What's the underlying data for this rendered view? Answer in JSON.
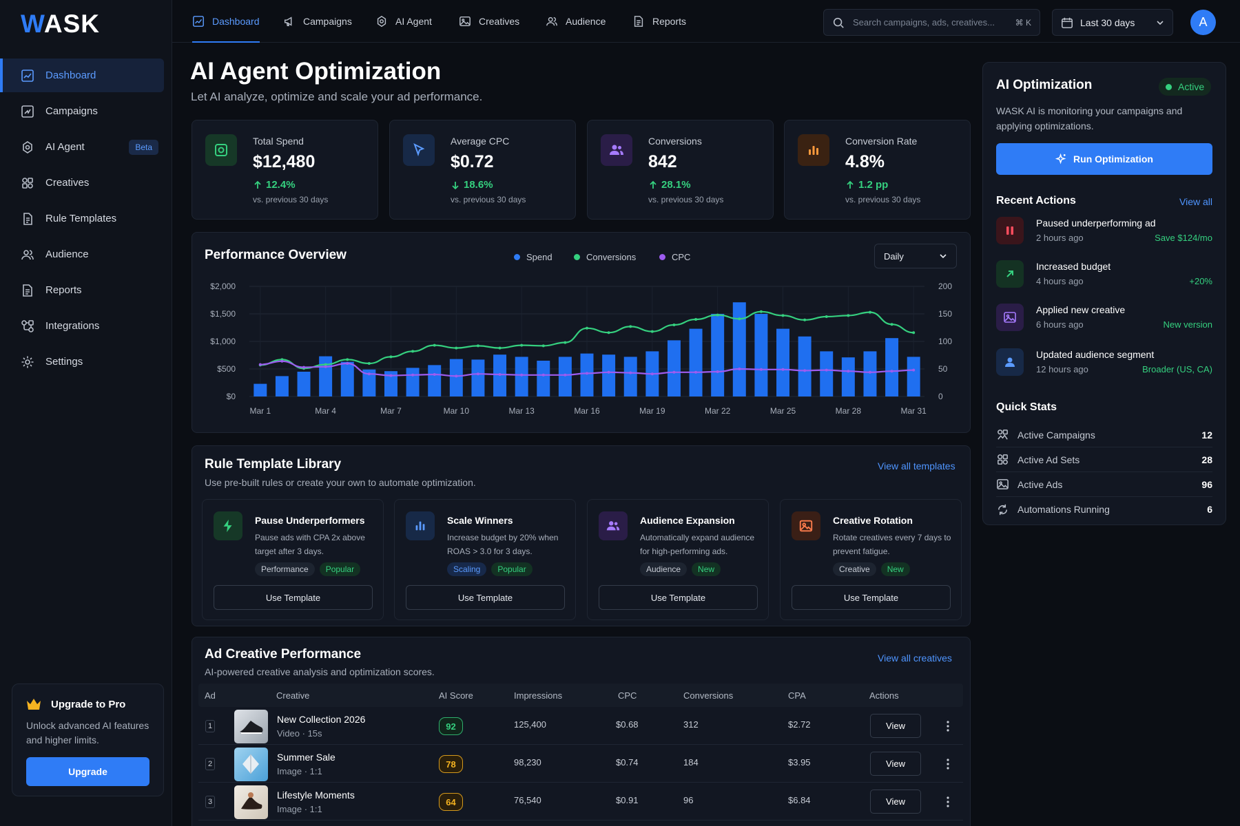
{
  "brand": {
    "logo_w": "W",
    "logo_rest": "ASK"
  },
  "sidebar": {
    "items": [
      {
        "label": "Dashboard",
        "icon": "chart-icon"
      },
      {
        "label": "Campaigns",
        "icon": "campaign-icon"
      },
      {
        "label": "AI Agent",
        "icon": "ai-agent-icon",
        "badge": "Beta"
      },
      {
        "label": "Creatives",
        "icon": "creatives-icon"
      },
      {
        "label": "Rule Templates",
        "icon": "rule-templates-icon"
      },
      {
        "label": "Audience",
        "icon": "audience-icon"
      },
      {
        "label": "Reports",
        "icon": "reports-icon"
      },
      {
        "label": "Integrations",
        "icon": "integrations-icon"
      },
      {
        "label": "Settings",
        "icon": "settings-icon"
      }
    ],
    "upgrade": {
      "title": "Upgrade to Pro",
      "text": "Unlock advanced AI features and higher limits.",
      "button": "Upgrade"
    }
  },
  "topbar": {
    "tabs": [
      "Dashboard",
      "Campaigns",
      "AI Agent",
      "Creatives",
      "Audience",
      "Reports"
    ],
    "search_placeholder": "Search campaigns, ads, creatives...",
    "search_shortcut": "⌘ K",
    "date_range": "Last 30 days",
    "avatar_initial": "A"
  },
  "page": {
    "title": "AI Agent Optimization",
    "subtitle": "Let AI analyze, optimize and scale your ad performance."
  },
  "kpis": [
    {
      "label": "Total Spend",
      "value": "$12,480",
      "change": "12.4%",
      "direction": "up",
      "compare": "vs. previous 30 days",
      "color": "#35d07f"
    },
    {
      "label": "Average CPC",
      "value": "$0.72",
      "change": "18.6%",
      "direction": "down",
      "compare": "vs. previous 30 days",
      "color": "#5b9bff"
    },
    {
      "label": "Conversions",
      "value": "842",
      "change": "28.1%",
      "direction": "up",
      "compare": "vs. previous 30 days",
      "color": "#a67bff"
    },
    {
      "label": "Conversion Rate",
      "value": "4.8%",
      "change": "1.2 pp",
      "direction": "up",
      "compare": "vs. previous 30 days",
      "color": "#ff9a3c"
    }
  ],
  "performance": {
    "title": "Performance Overview",
    "legend": [
      "Spend",
      "Conversions",
      "CPC"
    ],
    "granularity": "Daily"
  },
  "chart_data": {
    "type": "bar",
    "categories": [
      "Mar 1",
      "Mar 2",
      "Mar 3",
      "Mar 4",
      "Mar 5",
      "Mar 6",
      "Mar 7",
      "Mar 8",
      "Mar 9",
      "Mar 10",
      "Mar 11",
      "Mar 12",
      "Mar 13",
      "Mar 14",
      "Mar 15",
      "Mar 16",
      "Mar 17",
      "Mar 18",
      "Mar 19",
      "Mar 20",
      "Mar 21",
      "Mar 22",
      "Mar 23",
      "Mar 24",
      "Mar 25",
      "Mar 26",
      "Mar 27",
      "Mar 28",
      "Mar 29",
      "Mar 30",
      "Mar 31"
    ],
    "x_tick_labels": [
      "Mar 1",
      "Mar 4",
      "Mar 7",
      "Mar 10",
      "Mar 13",
      "Mar 16",
      "Mar 19",
      "Mar 22",
      "Mar 25",
      "Mar 28",
      "Mar 31"
    ],
    "y_left_ticks": [
      "$0",
      "$500",
      "$1,000",
      "$1,500",
      "$2,000"
    ],
    "y_right_ticks": [
      "0",
      "50",
      "100",
      "150",
      "200"
    ],
    "y_left_lim": [
      0,
      2000
    ],
    "y_right_lim": [
      0,
      200
    ],
    "grid": true,
    "series": [
      {
        "name": "Spend",
        "type": "bar",
        "axis": "left",
        "color": "#1f6ff0",
        "values": [
          230,
          370,
          450,
          730,
          630,
          490,
          460,
          520,
          570,
          680,
          670,
          760,
          720,
          650,
          720,
          780,
          760,
          720,
          820,
          1020,
          1230,
          1500,
          1710,
          1500,
          1230,
          1090,
          820,
          710,
          820,
          1060,
          720
        ]
      },
      {
        "name": "Conversions",
        "type": "line",
        "axis": "right",
        "color": "#35d07f",
        "values": [
          57,
          67,
          51,
          58,
          67,
          60,
          72,
          82,
          93,
          88,
          92,
          88,
          93,
          92,
          98,
          124,
          116,
          127,
          118,
          130,
          140,
          148,
          141,
          154,
          147,
          139,
          145,
          147,
          153,
          131,
          116
        ]
      },
      {
        "name": "CPC",
        "type": "line",
        "axis": "right",
        "color": "#9d5cf0",
        "values": [
          58,
          64,
          53,
          54,
          60,
          41,
          38,
          39,
          40,
          37,
          41,
          40,
          39,
          39,
          39,
          42,
          44,
          43,
          41,
          44,
          44,
          45,
          50,
          49,
          49,
          47,
          48,
          46,
          44,
          46,
          48
        ]
      }
    ]
  },
  "rules": {
    "title": "Rule Template Library",
    "subtitle": "Use pre-built rules or create your own to automate optimization.",
    "view_all": "View all templates",
    "items": [
      {
        "title": "Pause Underperformers",
        "desc": "Pause ads with CPA 2x above target after 3 days.",
        "tags": [
          {
            "t": "Performance",
            "k": "g"
          },
          {
            "t": "Popular",
            "k": "gr"
          }
        ],
        "button": "Use Template",
        "color": "#35d07f",
        "icon": "lightning-icon"
      },
      {
        "title": "Scale Winners",
        "desc": "Increase budget by 20% when ROAS > 3.0 for 3 days.",
        "tags": [
          {
            "t": "Scaling",
            "k": "bl"
          },
          {
            "t": "Popular",
            "k": "gr"
          }
        ],
        "button": "Use Template",
        "color": "#5b9bff",
        "icon": "bar-chart-icon"
      },
      {
        "title": "Audience Expansion",
        "desc": "Automatically expand audience for high-performing ads.",
        "tags": [
          {
            "t": "Audience",
            "k": "g"
          },
          {
            "t": "New",
            "k": "gr"
          }
        ],
        "button": "Use Template",
        "color": "#a67bff",
        "icon": "users-icon"
      },
      {
        "title": "Creative Rotation",
        "desc": "Rotate creatives every 7 days to prevent fatigue.",
        "tags": [
          {
            "t": "Creative",
            "k": "g"
          },
          {
            "t": "New",
            "k": "gr"
          }
        ],
        "button": "Use Template",
        "color": "#ff7d4d",
        "icon": "image-icon"
      }
    ]
  },
  "creatives": {
    "title": "Ad Creative Performance",
    "subtitle": "AI-powered creative analysis and optimization scores.",
    "view_all": "View all creatives",
    "columns": [
      "Ad",
      "Creative",
      "AI Score",
      "Impressions",
      "CPC",
      "Conversions",
      "CPA",
      "Actions"
    ],
    "rows": [
      {
        "n": "1",
        "name": "New Collection 2026",
        "meta": "Video · 15s",
        "score": "92",
        "level": "g",
        "impressions": "125,400",
        "cpc": "$0.68",
        "conversions": "312",
        "cpa": "$2.72",
        "action": "View"
      },
      {
        "n": "2",
        "name": "Summer Sale",
        "meta": "Image · 1:1",
        "score": "78",
        "level": "y",
        "impressions": "98,230",
        "cpc": "$0.74",
        "conversions": "184",
        "cpa": "$3.95",
        "action": "View"
      },
      {
        "n": "3",
        "name": "Lifestyle Moments",
        "meta": "Image · 1:1",
        "score": "64",
        "level": "y",
        "impressions": "76,540",
        "cpc": "$0.91",
        "conversions": "96",
        "cpa": "$6.84",
        "action": "View"
      }
    ]
  },
  "ai_panel": {
    "title": "AI Optimization",
    "status": "Active",
    "desc": "WASK AI is monitoring your campaigns and applying optimizations.",
    "run_button": "Run Optimization",
    "recent_title": "Recent Actions",
    "view_all": "View all",
    "actions": [
      {
        "title": "Paused underperforming ad",
        "time": "2 hours ago",
        "result": "Save $124/mo",
        "color": "#ff4d5e",
        "icon": "pause-icon"
      },
      {
        "title": "Increased budget",
        "time": "4 hours ago",
        "result": "+20%",
        "color": "#35d07f",
        "icon": "arrow-up-icon"
      },
      {
        "title": "Applied new creative",
        "time": "6 hours ago",
        "result": "New version",
        "color": "#a67bff",
        "icon": "image-icon"
      },
      {
        "title": "Updated audience segment",
        "time": "12 hours ago",
        "result": "Broader (US, CA)",
        "color": "#5b9bff",
        "icon": "user-icon"
      }
    ],
    "quick_title": "Quick Stats",
    "quick": [
      {
        "label": "Active Campaigns",
        "value": "12"
      },
      {
        "label": "Active Ad Sets",
        "value": "28"
      },
      {
        "label": "Active Ads",
        "value": "96"
      },
      {
        "label": "Automations Running",
        "value": "6",
        "green": true
      }
    ]
  }
}
